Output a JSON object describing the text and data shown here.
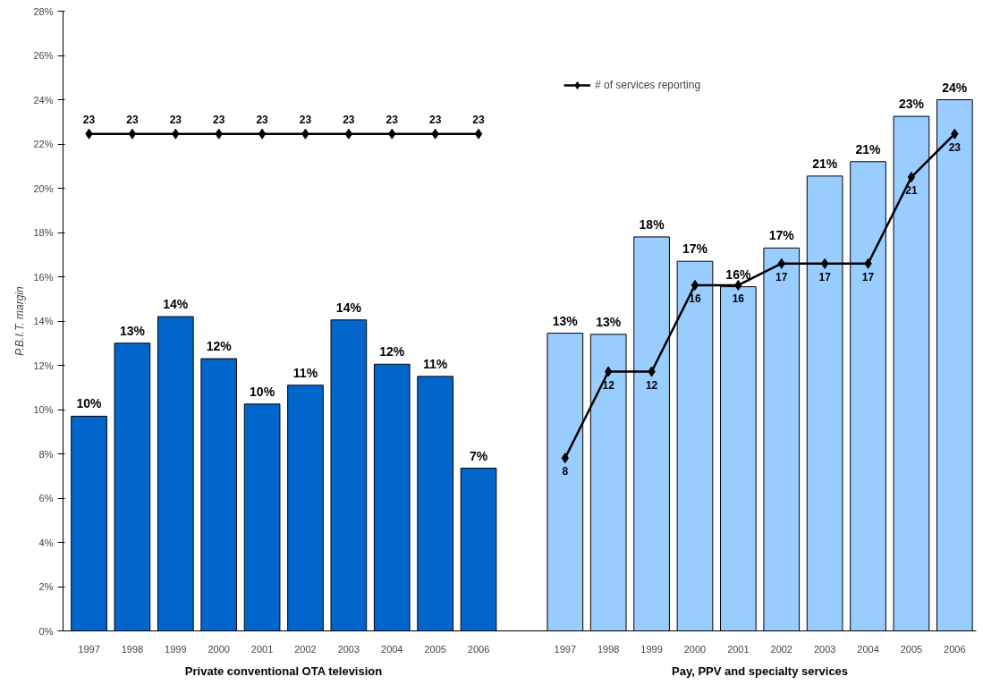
{
  "chart_data": {
    "type": "bar",
    "xlabel": "Private conventional OTA television",
    "ylabel": "P.B.I.T. margin",
    "annotations": [
      "Pay, PPV and specialty services"
    ],
    "categories": [
      "1997",
      "1998",
      "1999",
      "2000",
      "2001",
      "2002",
      "2003",
      "2004",
      "2005",
      "2006",
      null,
      "1997",
      "1998",
      "1999",
      "2000",
      "2001",
      "2002",
      "2003",
      "2004",
      "2005",
      "2006"
    ],
    "ylim": [
      0,
      28
    ],
    "yticks": [
      {
        "value": 0,
        "label": "0%"
      },
      {
        "value": 2,
        "label": "2%"
      },
      {
        "value": 4,
        "label": "4%"
      },
      {
        "value": 6,
        "label": "6%"
      },
      {
        "value": 8,
        "label": "8%"
      },
      {
        "value": 10,
        "label": "10%"
      },
      {
        "value": 12,
        "label": "12%"
      },
      {
        "value": 14,
        "label": "14%"
      },
      {
        "value": 16,
        "label": "16%"
      },
      {
        "value": 18,
        "label": "18%"
      },
      {
        "value": 20,
        "label": "20%"
      },
      {
        "value": 22,
        "label": "22%"
      },
      {
        "value": 24,
        "label": "24%"
      },
      {
        "value": 26,
        "label": "26%"
      },
      {
        "value": 28,
        "label": "28%"
      }
    ],
    "marker": "diamond",
    "grid": false,
    "legend": "top right",
    "series": [
      {
        "colors": [
          "#0066cc",
          "#0066cc",
          "#0066cc",
          "#0066cc",
          "#0066cc",
          "#0066cc",
          "#0066cc",
          "#0066cc",
          "#0066cc",
          "#0066cc",
          null,
          "#99ccff",
          "#99ccff",
          "#99ccff",
          "#99ccff",
          "#99ccff",
          "#99ccff",
          "#99ccff",
          "#99ccff",
          "#99ccff",
          "#99ccff"
        ],
        "values": [
          9.7,
          13.0,
          14.2,
          12.3,
          10.25,
          11.1,
          14.05,
          12.05,
          11.5,
          7.35,
          null,
          13.45,
          13.4,
          17.8,
          16.7,
          15.55,
          17.3,
          20.55,
          21.2,
          23.25,
          24.0
        ],
        "value_labels": [
          "10%",
          "13%",
          "14%",
          "12%",
          "10%",
          "11%",
          "14%",
          "12%",
          "11%",
          "7%",
          null,
          "13%",
          "13%",
          "18%",
          "17%",
          "16%",
          "17%",
          "21%",
          "21%",
          "23%",
          "24%"
        ]
      },
      {
        "type": "line",
        "axis": "y2",
        "name": "# of services reporting",
        "color": "#000000",
        "values": [
          23,
          23,
          23,
          23,
          23,
          23,
          23,
          23,
          23,
          23,
          null,
          8,
          12,
          12,
          16,
          16,
          17,
          17,
          17,
          21,
          23
        ],
        "value_labels": [
          "23",
          "23",
          "23",
          "23",
          "23",
          "23",
          "23",
          "23",
          "23",
          "23",
          null,
          "8",
          "12",
          "12",
          "16",
          "16",
          "17",
          "17",
          "17",
          "21",
          "23"
        ]
      }
    ]
  }
}
